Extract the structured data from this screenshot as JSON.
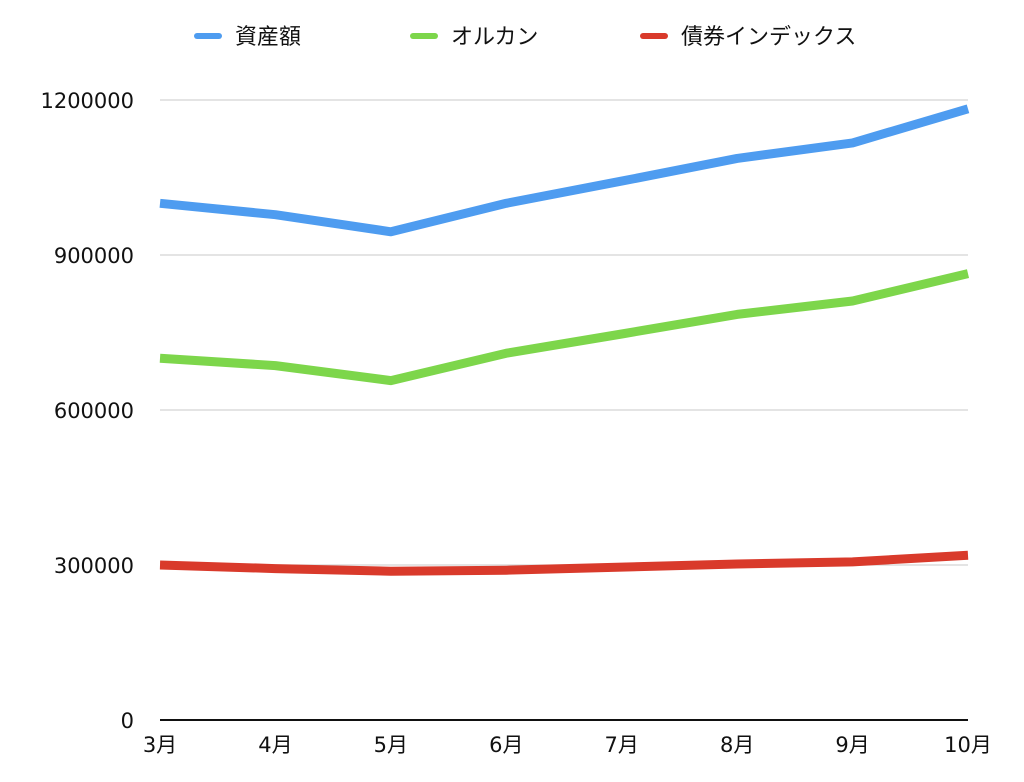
{
  "chart_data": {
    "type": "line",
    "categories": [
      "3月",
      "4月",
      "5月",
      "6月",
      "7月",
      "8月",
      "9月",
      "10月"
    ],
    "series": [
      {
        "name": "資産額",
        "color": "#4E9CF0",
        "values": [
          1000000,
          978000,
          945000,
          1000000,
          1043000,
          1087000,
          1117000,
          1183000
        ]
      },
      {
        "name": "オルカン",
        "color": "#7DD64B",
        "values": [
          700000,
          686000,
          657000,
          710000,
          747000,
          785000,
          811000,
          864000
        ]
      },
      {
        "name": "債券インデックス",
        "color": "#D93A2B",
        "values": [
          300000,
          293000,
          288000,
          290000,
          296000,
          302000,
          306000,
          319000
        ]
      }
    ],
    "ylim": [
      0,
      1200000
    ],
    "yticks": [
      "0",
      "300000",
      "600000",
      "900000",
      "1200000"
    ],
    "grid": true,
    "legend_position": "top"
  }
}
